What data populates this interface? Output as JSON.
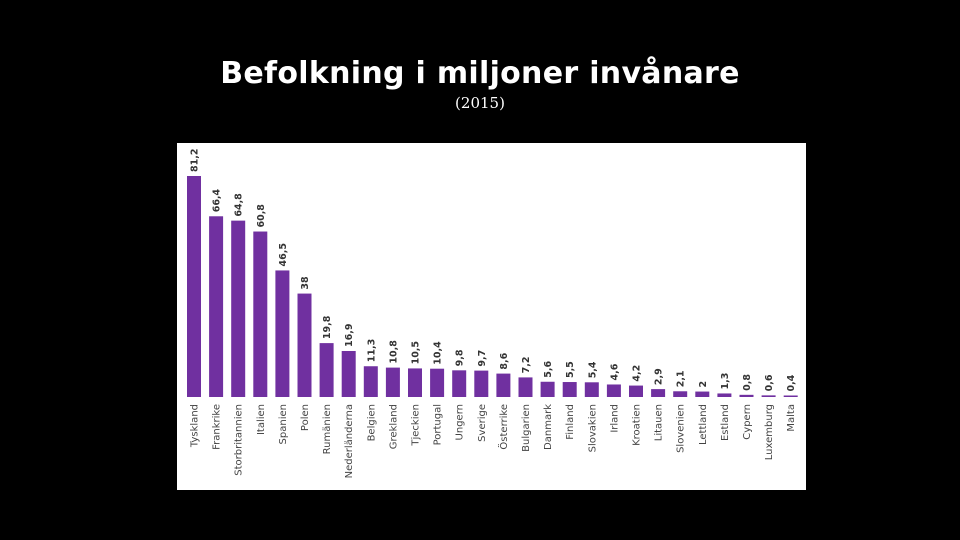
{
  "title": "Befolkning i miljoner invånare",
  "subtitle": "(2015)",
  "chart_data": {
    "type": "bar",
    "title": "",
    "xlabel": "",
    "ylabel": "",
    "ylim": [
      0,
      85
    ],
    "grid": false,
    "legend": "none",
    "bar_color": "#7030a0",
    "categories": [
      "Tyskland",
      "Frankrike",
      "Storbritannien",
      "Italien",
      "Spanien",
      "Polen",
      "Rumänien",
      "Nederländerna",
      "Belgien",
      "Grekland",
      "Tjeckien",
      "Portugal",
      "Ungern",
      "Sverige",
      "Österrike",
      "Bulgarien",
      "Danmark",
      "Finland",
      "Slovakien",
      "Irland",
      "Kroatien",
      "Litauen",
      "Slovenien",
      "Lettland",
      "Estland",
      "Cypern",
      "Luxemburg",
      "Malta"
    ],
    "values": [
      81.2,
      66.4,
      64.8,
      60.8,
      46.5,
      38,
      19.8,
      16.9,
      11.3,
      10.8,
      10.5,
      10.4,
      9.8,
      9.7,
      8.6,
      7.2,
      5.6,
      5.5,
      5.4,
      4.6,
      4.2,
      2.9,
      2.1,
      2,
      1.3,
      0.8,
      0.6,
      0.4
    ],
    "value_labels": [
      "81,2",
      "66,4",
      "64,8",
      "60,8",
      "46,5",
      "38",
      "19,8",
      "16,9",
      "11,3",
      "10,8",
      "10,5",
      "10,4",
      "9,8",
      "9,7",
      "8,6",
      "7,2",
      "5,6",
      "5,5",
      "5,4",
      "4,6",
      "4,2",
      "2,9",
      "2,1",
      "2",
      "1,3",
      "0,8",
      "0,6",
      "0,4"
    ]
  }
}
